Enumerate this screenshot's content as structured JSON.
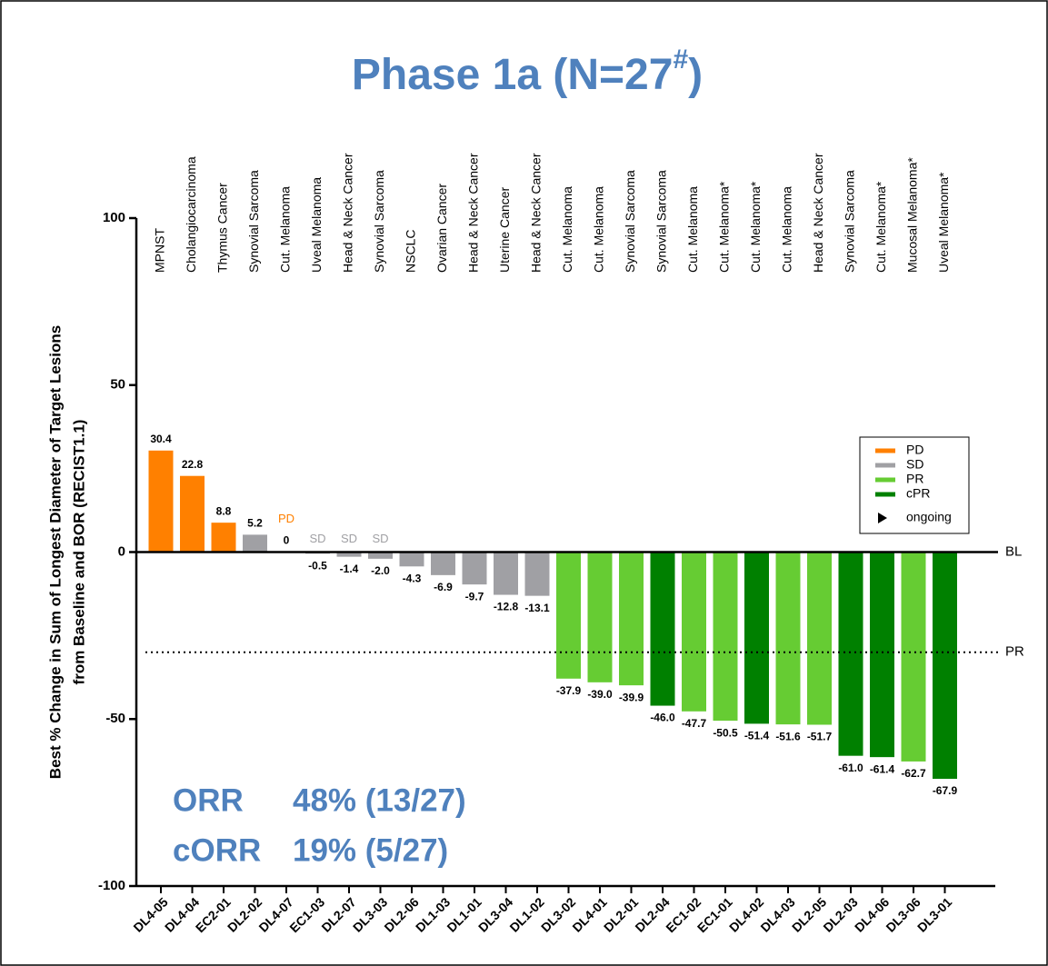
{
  "chart_data": {
    "type": "bar",
    "title": [
      "Phase 1a (N=27",
      "#",
      ")"
    ],
    "y_label": [
      "Best % Change in Sum of Longest Diameter of Target Lesions",
      "from Baseline and BOR (RECIST1.1)"
    ],
    "categories": [
      "DL4-05",
      "DL4-04",
      "EC2-01",
      "DL2-02",
      "DL4-07",
      "EC1-03",
      "DL2-07",
      "DL3-03",
      "DL2-06",
      "DL1-03",
      "DL1-01",
      "DL3-04",
      "DL1-02",
      "DL3-02",
      "DL4-01",
      "DL2-01",
      "DL2-04",
      "EC1-02",
      "EC1-01",
      "DL4-02",
      "DL4-03",
      "DL2-05",
      "DL2-03",
      "DL4-06",
      "DL3-06",
      "DL3-01"
    ],
    "tumor_types": [
      "MPNST",
      "Cholangiocarcinoma",
      "Thymus Cancer",
      "Synovial Sarcoma",
      "Cut. Melanoma",
      "Uveal Melanoma",
      "Head & Neck Cancer",
      "Synovial Sarcoma",
      "NSCLC",
      "Ovarian Cancer",
      "Head & Neck Cancer",
      "Uterine Cancer",
      "Head & Neck Cancer",
      "Cut. Melanoma",
      "Cut. Melanoma",
      "Synovial Sarcoma",
      "Synovial Sarcoma",
      "Cut. Melanoma",
      "Cut. Melanoma*",
      "Cut. Melanoma*",
      "Cut. Melanoma",
      "Head & Neck Cancer",
      "Synovial Sarcoma",
      "Cut. Melanoma*",
      "Mucosal Melanoma*",
      "Uveal Melanoma*"
    ],
    "values": [
      30.4,
      22.8,
      8.8,
      5.2,
      0,
      -0.5,
      -1.4,
      -2.0,
      -4.3,
      -6.9,
      -9.7,
      -12.8,
      -13.1,
      -37.9,
      -39.0,
      -39.9,
      -46.0,
      -47.7,
      -50.5,
      -51.4,
      -51.6,
      -51.7,
      -61.0,
      -61.4,
      -62.7,
      -67.9
    ],
    "value_labels": [
      "30.4",
      "22.8",
      "8.8",
      "5.2",
      "0",
      "-0.5",
      "-1.4",
      "-2.0",
      "-4.3",
      "-6.9",
      "-9.7",
      "-12.8",
      "-13.1",
      "-37.9",
      "-39.0",
      "-39.9",
      "-46.0",
      "-47.7",
      "-50.5",
      "-51.4",
      "-51.6",
      "-51.7",
      "-61.0",
      "-61.4",
      "-62.7",
      "-67.9"
    ],
    "bor": [
      "PD",
      "PD",
      "PD",
      "SD",
      "PD",
      "SD",
      "SD",
      "SD",
      "SD",
      "SD",
      "SD",
      "SD",
      "SD",
      "PR",
      "PR",
      "PR",
      "cPR",
      "PR",
      "PR",
      "cPR",
      "PR",
      "PR",
      "cPR",
      "cPR",
      "PR",
      "cPR"
    ],
    "status_labels": [
      null,
      null,
      null,
      null,
      "PD",
      "SD",
      "SD",
      "SD",
      null,
      null,
      null,
      null,
      null,
      null,
      null,
      null,
      null,
      null,
      null,
      null,
      null,
      null,
      null,
      null,
      null,
      null
    ],
    "series": [
      {
        "name": "PD",
        "color": "#ff8000"
      },
      {
        "name": "SD",
        "color": "#a0a0a4"
      },
      {
        "name": "PR",
        "color": "#66cc33"
      },
      {
        "name": "cPR",
        "color": "#008000"
      },
      {
        "name": "ongoing",
        "marker": "triangle",
        "color": "#000000"
      }
    ],
    "ylim": [
      -100,
      100
    ],
    "yticks": [
      -100,
      -50,
      0,
      50,
      100
    ],
    "reference_lines": [
      {
        "value": 0,
        "label": "BL",
        "style": "solid"
      },
      {
        "value": -30,
        "label": "PR",
        "style": "dotted"
      }
    ],
    "annotations": [
      [
        "ORR",
        "48% (13/27)"
      ],
      [
        "cORR",
        "19% (5/27)"
      ]
    ]
  }
}
